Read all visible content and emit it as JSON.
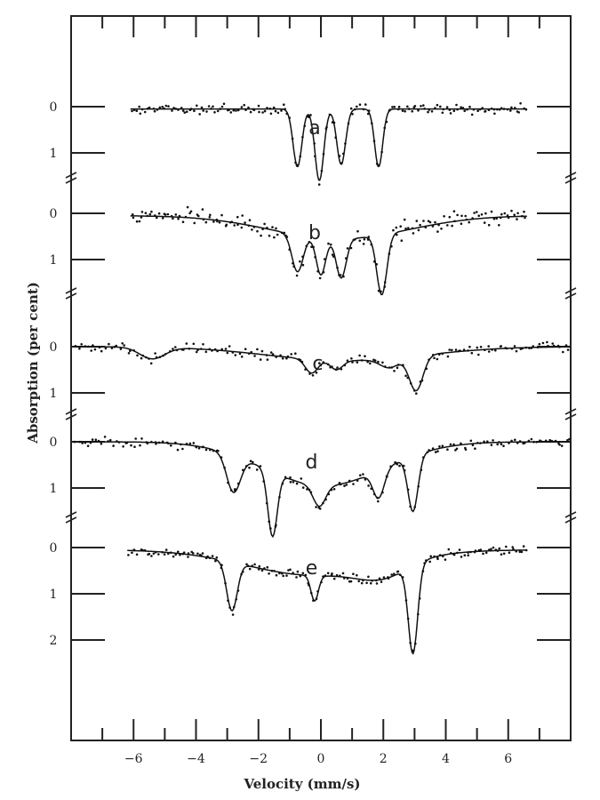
{
  "chart_data": {
    "type": "scatter",
    "title": "",
    "xlabel": "Velocity (mm/s)",
    "ylabel": "Absorption (per cent)",
    "xlim": [
      -8,
      8
    ],
    "xticks": [
      -6,
      -4,
      -2,
      0,
      2,
      4,
      6
    ],
    "xtick_labels": [
      "−6",
      "−4",
      "−2",
      "0",
      "2",
      "4",
      "6"
    ],
    "grid": false,
    "legend": "none",
    "panels": [
      {
        "label": "a",
        "yticks": [
          0,
          1
        ],
        "ytick_labels": [
          "0",
          "1"
        ],
        "x_range": [
          -6.1,
          6.6
        ],
        "baseline": 0.05,
        "scatter": 0.05,
        "peaks": [
          {
            "center": -0.75,
            "depth": 1.25,
            "width": 0.14
          },
          {
            "center": -0.05,
            "depth": 1.55,
            "width": 0.14
          },
          {
            "center": 0.65,
            "depth": 1.2,
            "width": 0.14
          },
          {
            "center": 1.85,
            "depth": 1.25,
            "width": 0.13
          }
        ],
        "broad": []
      },
      {
        "label": "b",
        "yticks": [
          0,
          1
        ],
        "ytick_labels": [
          "0",
          "1"
        ],
        "x_range": [
          -6.1,
          6.6
        ],
        "baseline": 0.05,
        "scatter": 0.09,
        "peaks": [
          {
            "center": -0.75,
            "depth": 0.8,
            "width": 0.18
          },
          {
            "center": 0.0,
            "depth": 0.8,
            "width": 0.15
          },
          {
            "center": 0.65,
            "depth": 0.85,
            "width": 0.16
          },
          {
            "center": 1.95,
            "depth": 1.3,
            "width": 0.16
          }
        ],
        "broad": [
          {
            "center": 0.6,
            "depth": 0.5,
            "width": 2.2
          }
        ]
      },
      {
        "label": "c",
        "yticks": [
          0,
          1
        ],
        "ytick_labels": [
          "0",
          "1"
        ],
        "x_range": [
          -7.9,
          8.0
        ],
        "baseline": 0.0,
        "scatter": 0.05,
        "peaks": [
          {
            "center": -5.4,
            "depth": 0.25,
            "width": 0.4
          },
          {
            "center": -0.3,
            "depth": 0.3,
            "width": 0.2
          },
          {
            "center": 0.5,
            "depth": 0.2,
            "width": 0.2
          },
          {
            "center": 2.2,
            "depth": 0.2,
            "width": 0.3
          },
          {
            "center": 3.05,
            "depth": 0.75,
            "width": 0.22
          }
        ],
        "broad": [
          {
            "center": 0.8,
            "depth": 0.3,
            "width": 2.5
          }
        ]
      },
      {
        "label": "d",
        "yticks": [
          0,
          1
        ],
        "ytick_labels": [
          "0",
          "1"
        ],
        "x_range": [
          -7.9,
          8.0
        ],
        "baseline": 0.0,
        "scatter": 0.05,
        "peaks": [
          {
            "center": -2.8,
            "depth": 0.8,
            "width": 0.22
          },
          {
            "center": -1.55,
            "depth": 1.4,
            "width": 0.15
          },
          {
            "center": -0.05,
            "depth": 0.45,
            "width": 0.2
          },
          {
            "center": 1.85,
            "depth": 0.6,
            "width": 0.18
          },
          {
            "center": 2.95,
            "depth": 1.2,
            "width": 0.16
          }
        ],
        "broad": [
          {
            "center": 0.1,
            "depth": 0.95,
            "width": 1.9
          }
        ]
      },
      {
        "label": "e",
        "yticks": [
          0,
          1,
          2
        ],
        "ytick_labels": [
          "0",
          "1",
          "2"
        ],
        "x_range": [
          -6.2,
          6.6
        ],
        "baseline": 0.05,
        "scatter": 0.05,
        "peaks": [
          {
            "center": -2.85,
            "depth": 1.05,
            "width": 0.17
          },
          {
            "center": -0.2,
            "depth": 0.55,
            "width": 0.12
          },
          {
            "center": 2.95,
            "depth": 1.9,
            "width": 0.15
          }
        ],
        "broad": [
          {
            "center": -0.2,
            "depth": 0.55,
            "width": 2.2
          },
          {
            "center": 2.0,
            "depth": 0.3,
            "width": 0.8
          }
        ]
      }
    ]
  }
}
